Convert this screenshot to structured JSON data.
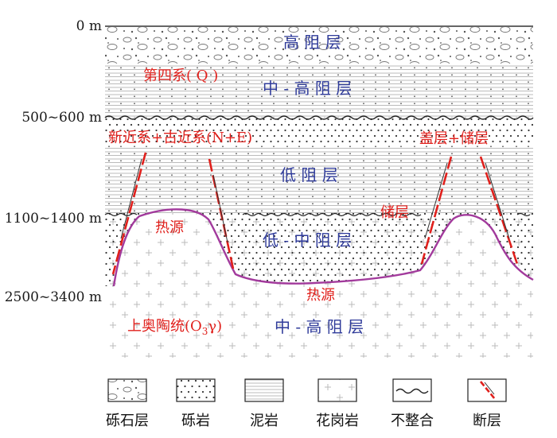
{
  "depths": {
    "d0": "0 m",
    "d1": "500~600 m",
    "d2": "1100~1400 m",
    "d3": "2500~3400 m"
  },
  "labels": {
    "quaternary": "第四系( Q )",
    "neogene": "新近系+古近系(N+E)",
    "cap_reservoir": "盖层+储层",
    "reservoir": "储层",
    "heat_source_1": "热源",
    "heat_source_2": "热源",
    "ordovician_prefix": "上奥陶统(O",
    "ordovician_sub": "3",
    "ordovician_suffix": "γ)",
    "high_res": "高 阻 层",
    "mid_high_res_1": "中 - 高 阻 层",
    "low_res": "低 阻 层",
    "low_mid_res": "低 - 中 阻 层",
    "mid_high_res_2": "中 - 高 阻 层"
  },
  "legend": [
    {
      "id": "gravel",
      "label": "砾石层"
    },
    {
      "id": "conglomerate",
      "label": "砾岩"
    },
    {
      "id": "mudstone",
      "label": "泥岩"
    },
    {
      "id": "granite",
      "label": "花岗岩"
    },
    {
      "id": "unconformity",
      "label": "不整合"
    },
    {
      "id": "fault",
      "label": "断层"
    }
  ],
  "colors": {
    "annotation_red": "#e0201c",
    "resistivity_blue": "#2f3b9a",
    "heat_boundary": "#a23a9c",
    "fault": "#e0201c"
  }
}
